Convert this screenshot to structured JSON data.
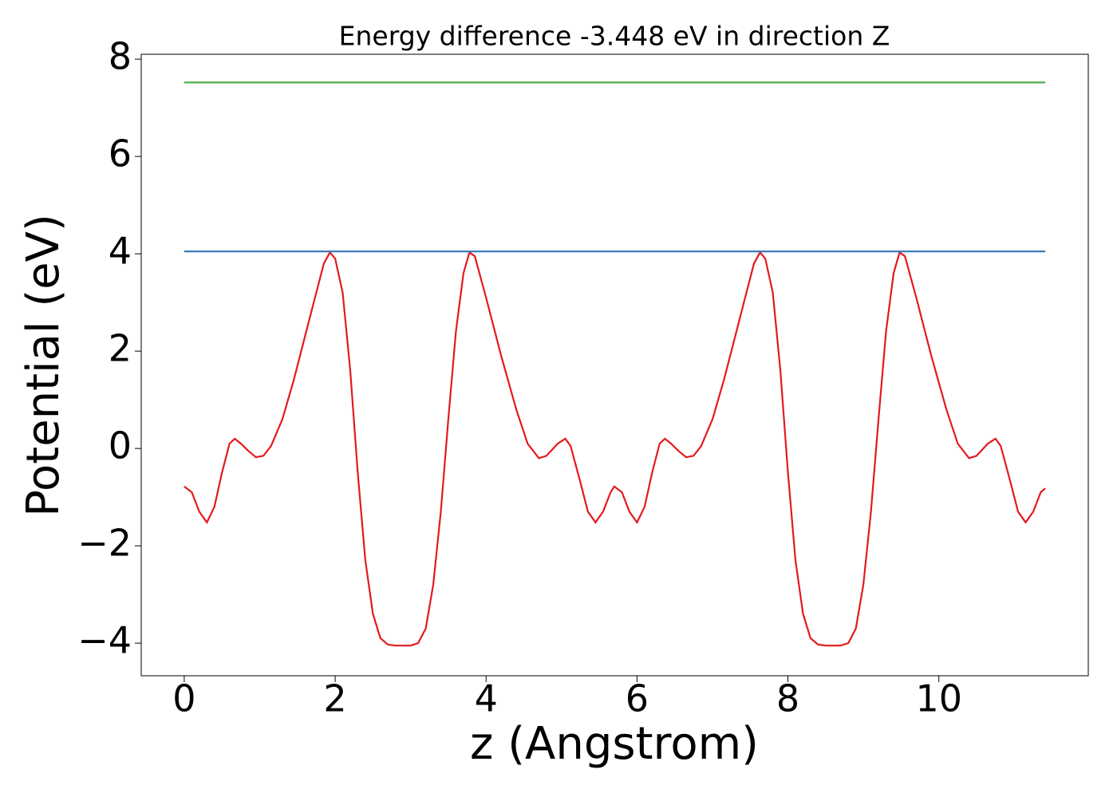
{
  "chart_data": {
    "type": "line",
    "title": "Energy difference -3.448 eV in direction Z",
    "x_label": "z (Angstrom)",
    "y_label": "Potential (eV)",
    "xlim": [
      -0.57,
      11.98
    ],
    "ylim": [
      -4.67,
      8.1
    ],
    "xticks": [
      0,
      2,
      4,
      6,
      8,
      10
    ],
    "yticks": [
      {
        "value": -4,
        "label": "−4"
      },
      {
        "value": -2,
        "label": "−2"
      },
      0,
      2,
      4,
      6,
      8
    ],
    "series": [
      {
        "color": "#e41a1c",
        "x": [
          0,
          0.1,
          0.2,
          0.3,
          0.4,
          0.5,
          0.6,
          0.67,
          0.75,
          0.85,
          0.95,
          1.05,
          1.15,
          1.3,
          1.45,
          1.6,
          1.75,
          1.85,
          1.93,
          2.0,
          2.1,
          2.2,
          2.3,
          2.4,
          2.5,
          2.6,
          2.7,
          2.8,
          3.0,
          3.1,
          3.2,
          3.3,
          3.4,
          3.5,
          3.6,
          3.7,
          3.78,
          3.85,
          4.0,
          4.2,
          4.4,
          4.55,
          4.7,
          4.8,
          4.95,
          5.05,
          5.12,
          5.25,
          5.35,
          5.45,
          5.55,
          5.65,
          5.7,
          5.8,
          5.9,
          6.0,
          6.1,
          6.2,
          6.3,
          6.37,
          6.45,
          6.55,
          6.65,
          6.75,
          6.85,
          7.0,
          7.15,
          7.3,
          7.45,
          7.55,
          7.63,
          7.7,
          7.8,
          7.9,
          8.0,
          8.1,
          8.2,
          8.3,
          8.4,
          8.5,
          8.7,
          8.8,
          8.9,
          9.0,
          9.1,
          9.2,
          9.3,
          9.4,
          9.48,
          9.55,
          9.7,
          9.9,
          10.1,
          10.25,
          10.4,
          10.5,
          10.65,
          10.75,
          10.82,
          10.95,
          11.05,
          11.15,
          11.25,
          11.35,
          11.41
        ],
        "values": [
          -0.78,
          -0.9,
          -1.3,
          -1.52,
          -1.2,
          -0.5,
          0.1,
          0.2,
          0.1,
          -0.05,
          -0.18,
          -0.15,
          0.05,
          0.6,
          1.4,
          2.3,
          3.2,
          3.8,
          4.03,
          3.9,
          3.2,
          1.6,
          -0.5,
          -2.3,
          -3.4,
          -3.9,
          -4.03,
          -4.05,
          -4.05,
          -4.0,
          -3.7,
          -2.8,
          -1.3,
          0.6,
          2.4,
          3.6,
          4.03,
          3.95,
          3.1,
          1.9,
          0.8,
          0.1,
          -0.2,
          -0.15,
          0.1,
          0.2,
          0.05,
          -0.7,
          -1.3,
          -1.52,
          -1.3,
          -0.9,
          -0.78,
          -0.9,
          -1.3,
          -1.52,
          -1.2,
          -0.5,
          0.1,
          0.2,
          0.1,
          -0.05,
          -0.18,
          -0.15,
          0.05,
          0.6,
          1.4,
          2.3,
          3.2,
          3.8,
          4.03,
          3.9,
          3.2,
          1.6,
          -0.5,
          -2.3,
          -3.4,
          -3.9,
          -4.03,
          -4.05,
          -4.05,
          -4.0,
          -3.7,
          -2.8,
          -1.3,
          0.6,
          2.4,
          3.6,
          4.03,
          3.95,
          3.1,
          1.9,
          0.8,
          0.1,
          -0.2,
          -0.15,
          0.1,
          0.2,
          0.05,
          -0.7,
          -1.3,
          -1.52,
          -1.3,
          -0.9,
          -0.82
        ]
      },
      {
        "color": "#377eb8",
        "x": [
          0,
          11.41
        ],
        "values": [
          4.05,
          4.05
        ]
      },
      {
        "color": "#4daf4a",
        "x": [
          0,
          11.41
        ],
        "values": [
          7.52,
          7.52
        ]
      }
    ]
  }
}
